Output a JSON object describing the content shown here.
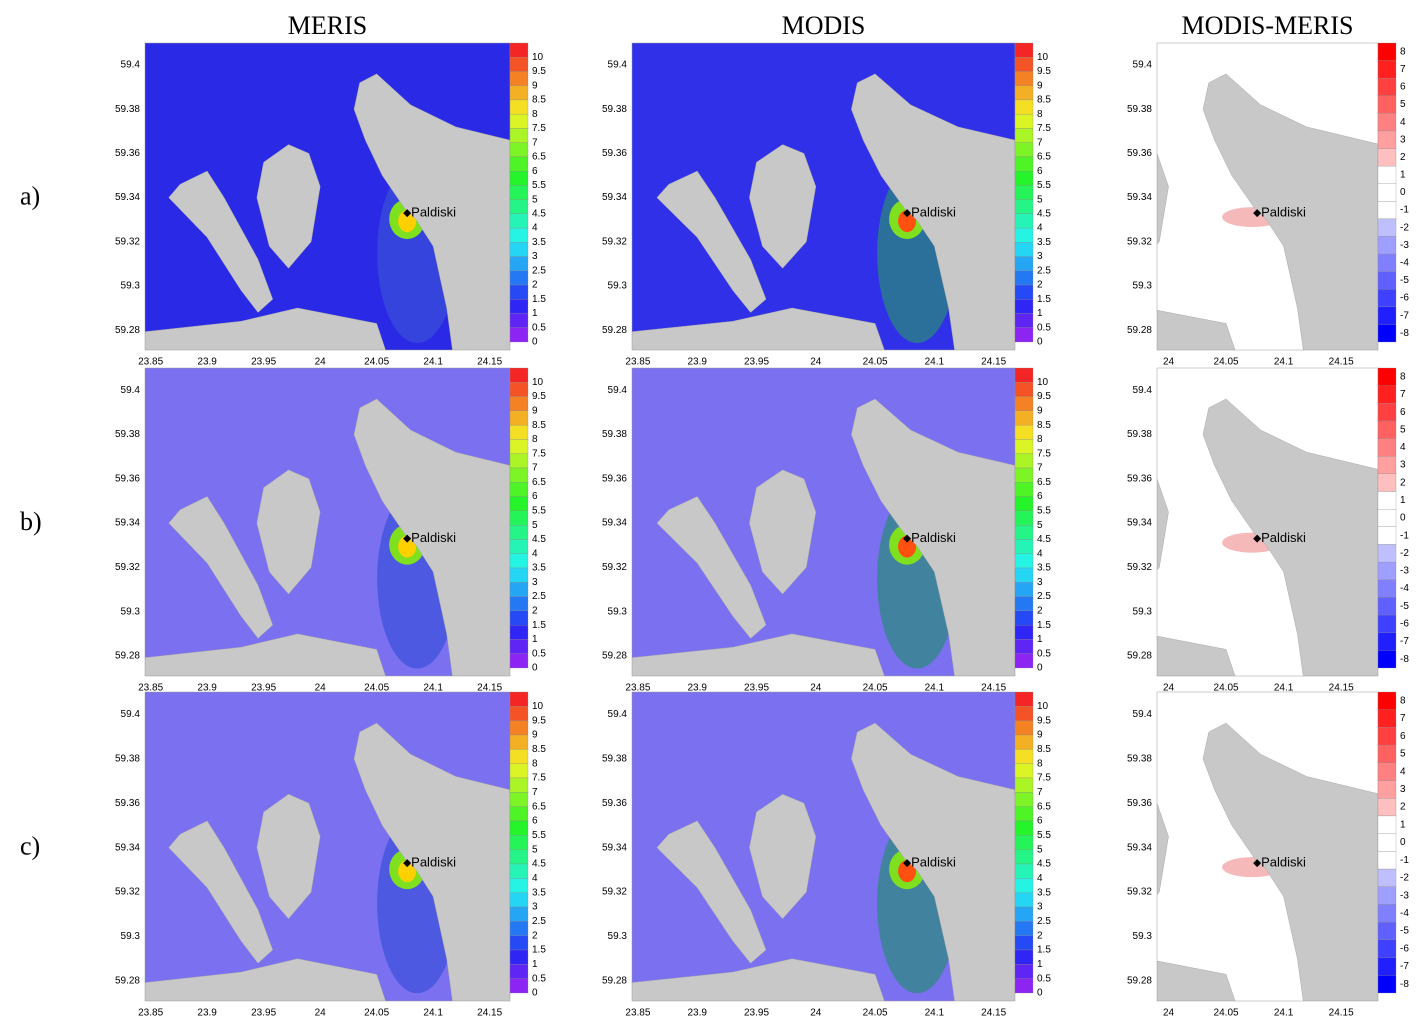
{
  "rows": [
    "a)",
    "b)",
    "c)"
  ],
  "place": "Paldiski",
  "columns": [
    {
      "title": "MERIS",
      "xlim": [
        23.845,
        24.168
      ],
      "ylim": [
        59.271,
        59.41
      ],
      "xticks": [
        23.85,
        23.9,
        23.95,
        24,
        24.05,
        24.1,
        24.15
      ],
      "yticks": [
        59.28,
        59.3,
        59.32,
        59.34,
        59.36,
        59.38,
        59.4
      ],
      "colorbar": [
        10,
        9.5,
        9,
        8.5,
        8,
        7.5,
        7,
        6.5,
        6,
        5.5,
        5,
        4.5,
        4,
        3.5,
        3,
        2.5,
        2,
        1.5,
        1,
        0.5,
        0
      ]
    },
    {
      "title": "MODIS",
      "xlim": [
        23.845,
        24.168
      ],
      "ylim": [
        59.271,
        59.41
      ],
      "xticks": [
        23.85,
        23.9,
        23.95,
        24,
        24.05,
        24.1,
        24.15
      ],
      "yticks": [
        59.28,
        59.3,
        59.32,
        59.34,
        59.36,
        59.38,
        59.4
      ],
      "colorbar": [
        10,
        9.5,
        9,
        8.5,
        8,
        7.5,
        7,
        6.5,
        6,
        5.5,
        5,
        4.5,
        4,
        3.5,
        3,
        2.5,
        2,
        1.5,
        1,
        0.5,
        0
      ]
    },
    {
      "title": "MODIS-MERIS",
      "xlim": [
        23.99,
        24.182
      ],
      "ylim": [
        59.271,
        59.41
      ],
      "xticks": [
        24,
        24.05,
        24.1,
        24.15
      ],
      "yticks": [
        59.28,
        59.3,
        59.32,
        59.34,
        59.36,
        59.38,
        59.4
      ],
      "colorbar": [
        8,
        7,
        6,
        5,
        4,
        3,
        2,
        1,
        0,
        -1,
        -2,
        -3,
        -4,
        -5,
        -6,
        -7,
        -8
      ]
    }
  ]
}
